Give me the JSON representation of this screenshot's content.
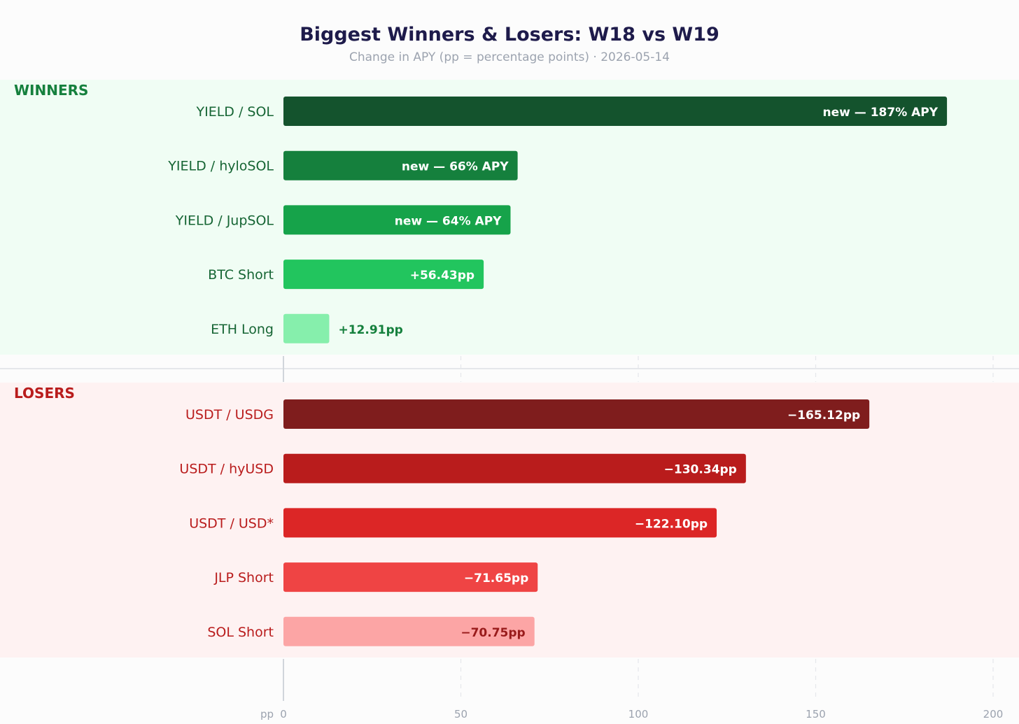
{
  "chart_data": {
    "type": "bar",
    "orientation": "horizontal",
    "title": "Biggest Winners & Losers: W18 vs W19",
    "subtitle": "Change in APY (pp = percentage points) · 2026-05-14",
    "xlabel": "pp",
    "xlim": [
      0,
      200
    ],
    "xticks": [
      "0",
      "50",
      "100",
      "150",
      "200"
    ],
    "grid": true,
    "sections": [
      {
        "name": "WINNERS",
        "color": "#15803d",
        "label_color": "#166534",
        "background": "#f0fdf4",
        "bars": [
          {
            "category": "YIELD / SOL",
            "value": 187,
            "label": "new — 187% APY",
            "color": "#14532d",
            "label_color": "#ffffff",
            "label_inside": true
          },
          {
            "category": "YIELD / hyloSOL",
            "value": 66,
            "label": "new — 66% APY",
            "color": "#15803d",
            "label_color": "#ffffff",
            "label_inside": true
          },
          {
            "category": "YIELD / JupSOL",
            "value": 64,
            "label": "new — 64% APY",
            "color": "#16a34a",
            "label_color": "#ffffff",
            "label_inside": true
          },
          {
            "category": "BTC Short",
            "value": 56.43,
            "label": "+56.43pp",
            "color": "#22c55e",
            "label_color": "#ffffff",
            "label_inside": true
          },
          {
            "category": "ETH Long",
            "value": 12.91,
            "label": "+12.91pp",
            "color": "#86efac",
            "label_color": "#15803d",
            "label_inside": false
          }
        ]
      },
      {
        "name": "LOSERS",
        "color": "#b91c1c",
        "label_color": "#b91c1c",
        "background": "#fef2f2",
        "bars": [
          {
            "category": "USDT / USDG",
            "value": 165.12,
            "label": "−165.12pp",
            "color": "#7f1d1d",
            "label_color": "#ffffff",
            "label_inside": true
          },
          {
            "category": "USDT / hyUSD",
            "value": 130.34,
            "label": "−130.34pp",
            "color": "#b91c1c",
            "label_color": "#ffffff",
            "label_inside": true
          },
          {
            "category": "USDT / USD*",
            "value": 122.1,
            "label": "−122.10pp",
            "color": "#dc2626",
            "label_color": "#ffffff",
            "label_inside": true
          },
          {
            "category": "JLP Short",
            "value": 71.65,
            "label": "−71.65pp",
            "color": "#ef4444",
            "label_color": "#ffffff",
            "label_inside": true
          },
          {
            "category": "SOL Short",
            "value": 70.75,
            "label": "−70.75pp",
            "color": "#fca5a5",
            "label_color": "#991b1b",
            "label_inside": true
          }
        ]
      }
    ]
  }
}
